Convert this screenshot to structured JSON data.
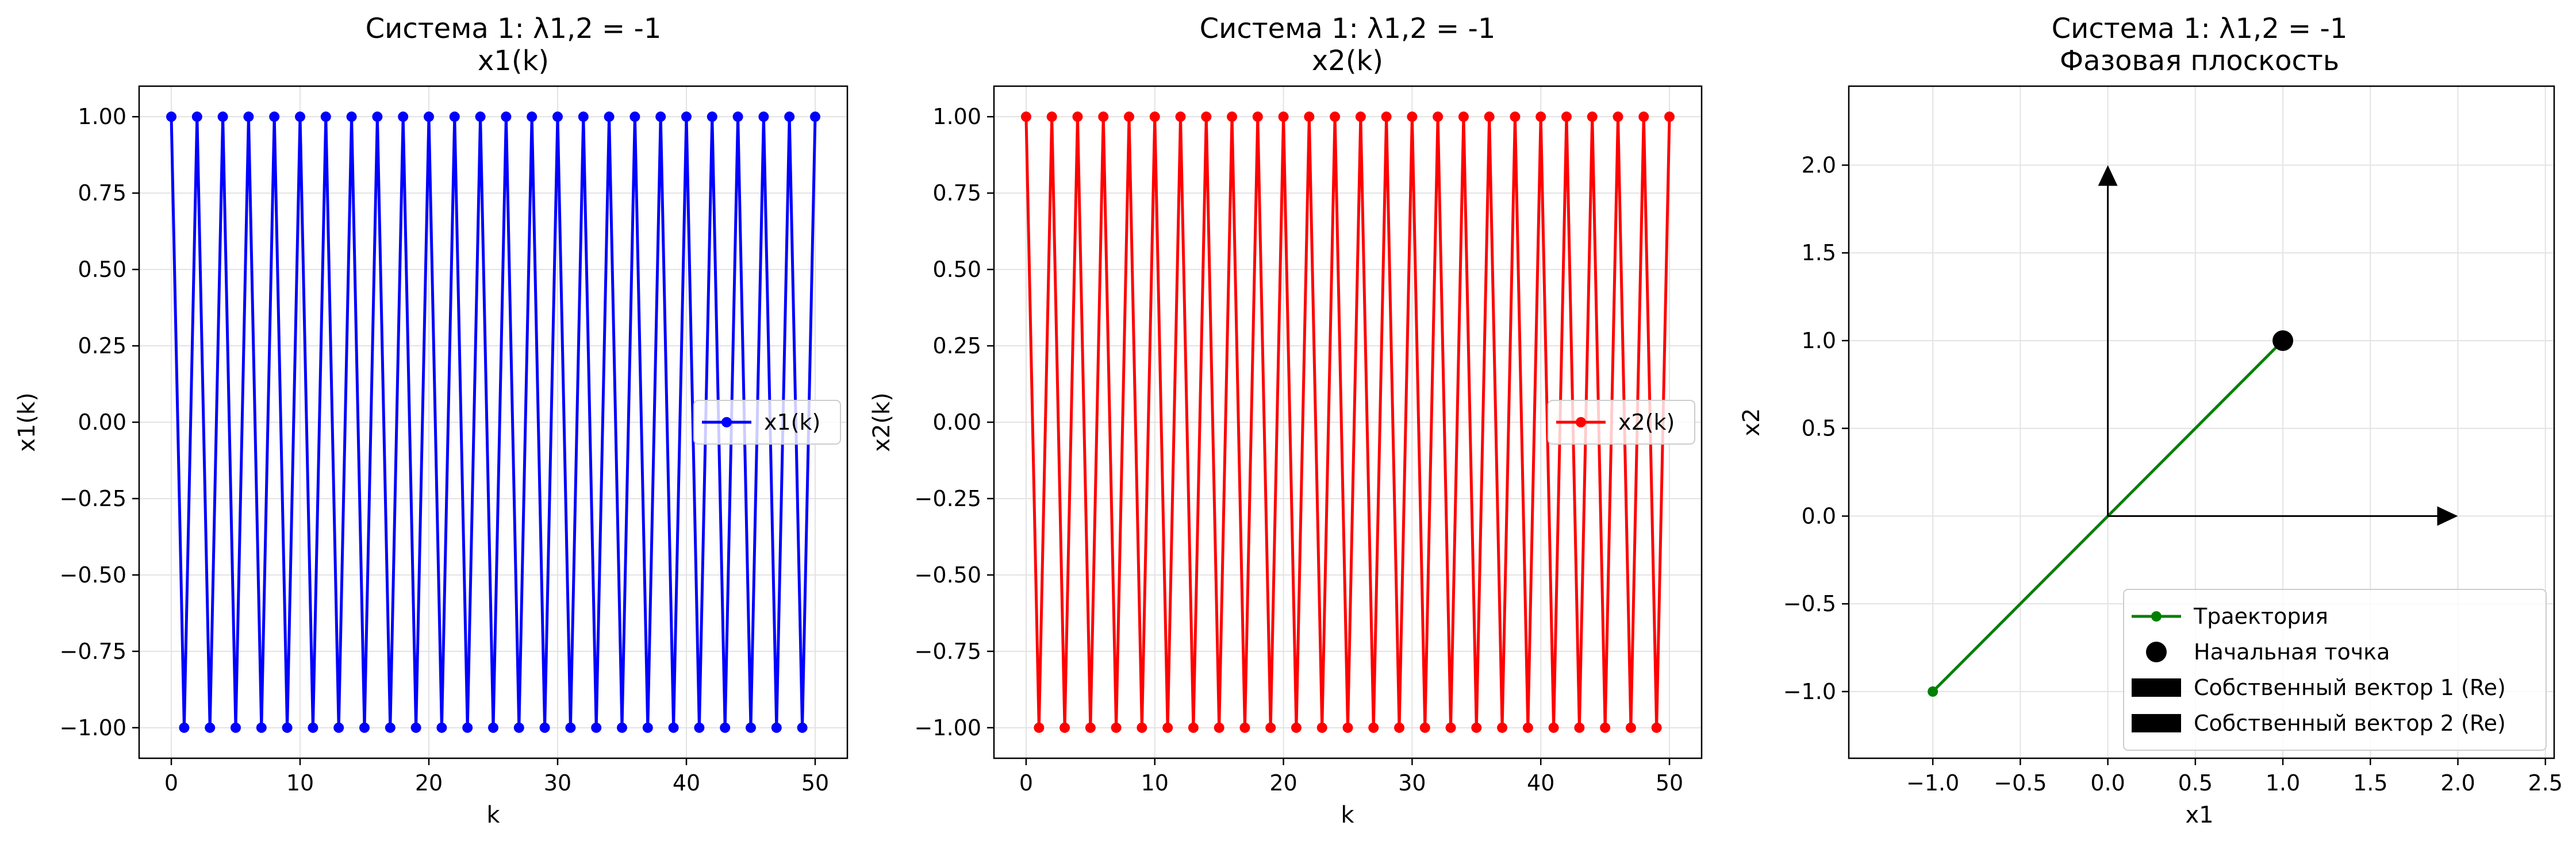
{
  "chart_data": [
    {
      "type": "line",
      "title": "Система 1: λ1,2 = -1",
      "subtitle": "x1(k)",
      "xlabel": "k",
      "ylabel": "x1(k)",
      "xlim": [
        -2.5,
        52.5
      ],
      "ylim": [
        -1.1,
        1.1
      ],
      "xticks": [
        0,
        10,
        20,
        30,
        40,
        50
      ],
      "yticks": [
        -1.0,
        -0.75,
        -0.5,
        -0.25,
        0.0,
        0.25,
        0.5,
        0.75,
        1.0
      ],
      "xtick_labels": [
        "0",
        "10",
        "20",
        "30",
        "40",
        "50"
      ],
      "ytick_labels": [
        "−1.00",
        "−0.75",
        "−0.50",
        "−0.25",
        "0.00",
        "0.25",
        "0.50",
        "0.75",
        "1.00"
      ],
      "grid": true,
      "legend": "center right",
      "series": [
        {
          "name": "x1(k)",
          "color": "#0000ff",
          "marker": "circle",
          "x": [
            0,
            1,
            2,
            3,
            4,
            5,
            6,
            7,
            8,
            9,
            10,
            11,
            12,
            13,
            14,
            15,
            16,
            17,
            18,
            19,
            20,
            21,
            22,
            23,
            24,
            25,
            26,
            27,
            28,
            29,
            30,
            31,
            32,
            33,
            34,
            35,
            36,
            37,
            38,
            39,
            40,
            41,
            42,
            43,
            44,
            45,
            46,
            47,
            48,
            49,
            50
          ],
          "y": [
            1,
            -1,
            1,
            -1,
            1,
            -1,
            1,
            -1,
            1,
            -1,
            1,
            -1,
            1,
            -1,
            1,
            -1,
            1,
            -1,
            1,
            -1,
            1,
            -1,
            1,
            -1,
            1,
            -1,
            1,
            -1,
            1,
            -1,
            1,
            -1,
            1,
            -1,
            1,
            -1,
            1,
            -1,
            1,
            -1,
            1,
            -1,
            1,
            -1,
            1,
            -1,
            1,
            -1,
            1,
            -1,
            1
          ]
        }
      ]
    },
    {
      "type": "line",
      "title": "Система 1: λ1,2 = -1",
      "subtitle": "x2(k)",
      "xlabel": "k",
      "ylabel": "x2(k)",
      "xlim": [
        -2.5,
        52.5
      ],
      "ylim": [
        -1.1,
        1.1
      ],
      "xticks": [
        0,
        10,
        20,
        30,
        40,
        50
      ],
      "yticks": [
        -1.0,
        -0.75,
        -0.5,
        -0.25,
        0.0,
        0.25,
        0.5,
        0.75,
        1.0
      ],
      "xtick_labels": [
        "0",
        "10",
        "20",
        "30",
        "40",
        "50"
      ],
      "ytick_labels": [
        "−1.00",
        "−0.75",
        "−0.50",
        "−0.25",
        "0.00",
        "0.25",
        "0.50",
        "0.75",
        "1.00"
      ],
      "grid": true,
      "legend": "center right",
      "series": [
        {
          "name": "x2(k)",
          "color": "#ff0000",
          "marker": "circle",
          "x": [
            0,
            1,
            2,
            3,
            4,
            5,
            6,
            7,
            8,
            9,
            10,
            11,
            12,
            13,
            14,
            15,
            16,
            17,
            18,
            19,
            20,
            21,
            22,
            23,
            24,
            25,
            26,
            27,
            28,
            29,
            30,
            31,
            32,
            33,
            34,
            35,
            36,
            37,
            38,
            39,
            40,
            41,
            42,
            43,
            44,
            45,
            46,
            47,
            48,
            49,
            50
          ],
          "y": [
            1,
            -1,
            1,
            -1,
            1,
            -1,
            1,
            -1,
            1,
            -1,
            1,
            -1,
            1,
            -1,
            1,
            -1,
            1,
            -1,
            1,
            -1,
            1,
            -1,
            1,
            -1,
            1,
            -1,
            1,
            -1,
            1,
            -1,
            1,
            -1,
            1,
            -1,
            1,
            -1,
            1,
            -1,
            1,
            -1,
            1,
            -1,
            1,
            -1,
            1,
            -1,
            1,
            -1,
            1,
            -1,
            1
          ]
        }
      ]
    },
    {
      "type": "line",
      "title": "Система 1: λ1,2 = -1",
      "subtitle": "Фазовая плоскость",
      "xlabel": "x1",
      "ylabel": "x2",
      "xlim": [
        -1.48,
        2.55
      ],
      "ylim": [
        -1.38,
        2.45
      ],
      "xticks": [
        -1.0,
        -0.5,
        0.0,
        0.5,
        1.0,
        1.5,
        2.0,
        2.5
      ],
      "yticks": [
        -1.0,
        -0.5,
        0.0,
        0.5,
        1.0,
        1.5,
        2.0
      ],
      "xtick_labels": [
        "−1.0",
        "−0.5",
        "0.0",
        "0.5",
        "1.0",
        "1.5",
        "2.0",
        "2.5"
      ],
      "ytick_labels": [
        "−1.0",
        "−0.5",
        "0.0",
        "0.5",
        "1.0",
        "1.5",
        "2.0"
      ],
      "grid": true,
      "legend": "lower right",
      "series": [
        {
          "name": "Траектория",
          "color": "#008000",
          "marker": "circle",
          "x": [
            1,
            -1
          ],
          "y": [
            1,
            -1
          ]
        },
        {
          "name": "Начальная точка",
          "color": "#000000",
          "marker": "circle",
          "x": [
            1
          ],
          "y": [
            1
          ]
        },
        {
          "name": "Собственный вектор 1 (Re)",
          "color": "#000000",
          "kind": "arrow",
          "x": [
            0,
            2
          ],
          "y": [
            0,
            0
          ]
        },
        {
          "name": "Собственный вектор 2 (Re)",
          "color": "#000000",
          "kind": "arrow",
          "x": [
            0,
            0
          ],
          "y": [
            0,
            2
          ]
        }
      ]
    }
  ]
}
